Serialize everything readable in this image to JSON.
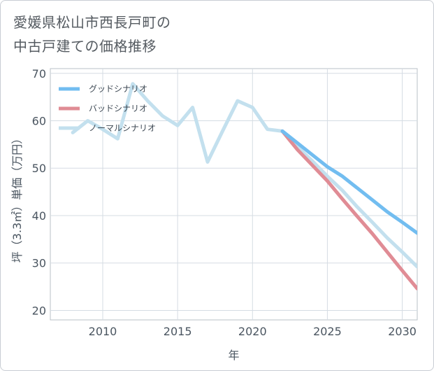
{
  "title": {
    "line1": "愛媛県松山市西長戸町の",
    "line2": "中古戸建ての価格推移"
  },
  "chart_data": {
    "type": "line",
    "xlabel": "年",
    "ylabel": "坪（3.3㎡）単価（万円）",
    "xlim": [
      2006.5,
      2031
    ],
    "ylim": [
      18,
      71
    ],
    "xticks": [
      2010,
      2015,
      2020,
      2025,
      2030
    ],
    "yticks": [
      20,
      30,
      40,
      50,
      60,
      70
    ],
    "grid": true,
    "legend_position": "top-left",
    "series": [
      {
        "name": "グッドシナリオ",
        "color": "#72bdf0",
        "x": [
          2022,
          2023,
          2024,
          2025,
          2026,
          2027,
          2028,
          2029,
          2030,
          2031
        ],
        "y": [
          57.8,
          55.3,
          52.8,
          50.3,
          48.3,
          45.8,
          43.3,
          40.8,
          38.6,
          36.3
        ]
      },
      {
        "name": "バッドシナリオ",
        "color": "#e08c95",
        "x": [
          2022,
          2023,
          2024,
          2025,
          2026,
          2027,
          2028,
          2029,
          2030,
          2031
        ],
        "y": [
          57.8,
          53.9,
          50.6,
          47.3,
          43.5,
          39.8,
          36.2,
          32.3,
          28.4,
          24.6
        ]
      },
      {
        "name": "ノーマルシナリオ",
        "color": "#c3e0ee",
        "x": [
          2008,
          2009,
          2010,
          2011,
          2012,
          2013,
          2014,
          2015,
          2016,
          2017,
          2018,
          2019,
          2020,
          2021,
          2022,
          2023,
          2024,
          2025,
          2026,
          2027,
          2028,
          2029,
          2030,
          2031
        ],
        "y": [
          57.5,
          60,
          58.2,
          56.2,
          67.8,
          64.2,
          61,
          59,
          62.8,
          51.3,
          57.8,
          64.2,
          62.8,
          58.2,
          57.8,
          54.5,
          51.5,
          48.3,
          45.3,
          41.8,
          38.6,
          35.3,
          32.3,
          29.2
        ]
      }
    ]
  }
}
